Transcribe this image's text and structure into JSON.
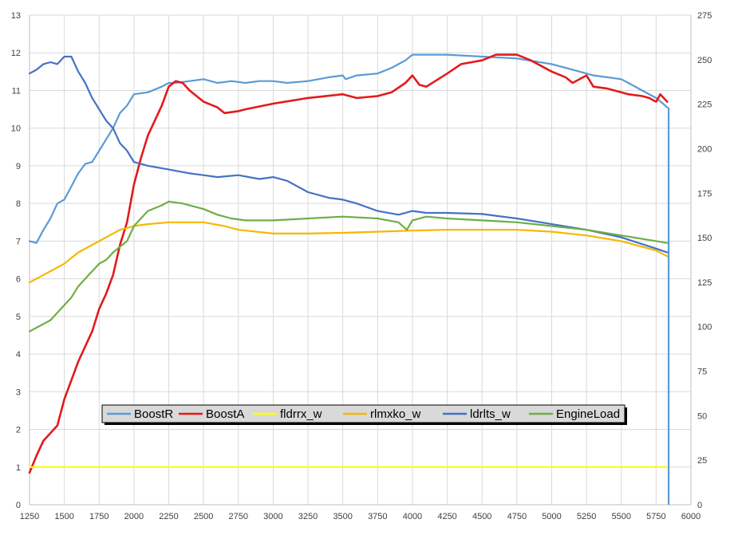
{
  "chart_data": {
    "type": "line",
    "title": "",
    "xlabel": "",
    "ylabel": "",
    "grid": true,
    "legend_placement": "bottom-center (inside plot)",
    "xlim": [
      1250,
      6000
    ],
    "x_ticks": [
      "1250",
      "1500",
      "1750",
      "2000",
      "2250",
      "2500",
      "2750",
      "3000",
      "3250",
      "3500",
      "3750",
      "4000",
      "4250",
      "4500",
      "4750",
      "5000",
      "5250",
      "5500",
      "5750",
      "6000"
    ],
    "ylim_left": [
      0,
      13
    ],
    "y_ticks_left": [
      "0",
      "1",
      "2",
      "3",
      "4",
      "5",
      "6",
      "7",
      "8",
      "9",
      "10",
      "11",
      "12",
      "13"
    ],
    "ylim_right": [
      0,
      275
    ],
    "y_ticks_right": [
      "0",
      "25",
      "50",
      "75",
      "100",
      "125",
      "150",
      "175",
      "200",
      "225",
      "250",
      "275"
    ],
    "series": [
      {
        "name": "BoostR",
        "axis": "left",
        "color": "#5b9bd5",
        "points": [
          [
            1250,
            7.0
          ],
          [
            1300,
            6.95
          ],
          [
            1350,
            7.3
          ],
          [
            1400,
            7.6
          ],
          [
            1450,
            8.0
          ],
          [
            1500,
            8.1
          ],
          [
            1550,
            8.45
          ],
          [
            1600,
            8.8
          ],
          [
            1650,
            9.05
          ],
          [
            1700,
            9.1
          ],
          [
            1750,
            9.4
          ],
          [
            1800,
            9.7
          ],
          [
            1850,
            10.0
          ],
          [
            1900,
            10.4
          ],
          [
            1950,
            10.6
          ],
          [
            2000,
            10.9
          ],
          [
            2100,
            10.95
          ],
          [
            2200,
            11.1
          ],
          [
            2250,
            11.2
          ],
          [
            2300,
            11.2
          ],
          [
            2400,
            11.25
          ],
          [
            2500,
            11.3
          ],
          [
            2600,
            11.2
          ],
          [
            2700,
            11.25
          ],
          [
            2800,
            11.2
          ],
          [
            2900,
            11.25
          ],
          [
            3000,
            11.25
          ],
          [
            3100,
            11.2
          ],
          [
            3250,
            11.25
          ],
          [
            3400,
            11.35
          ],
          [
            3500,
            11.4
          ],
          [
            3520,
            11.3
          ],
          [
            3600,
            11.4
          ],
          [
            3750,
            11.45
          ],
          [
            3850,
            11.6
          ],
          [
            3950,
            11.8
          ],
          [
            4000,
            11.95
          ],
          [
            4250,
            11.95
          ],
          [
            4500,
            11.9
          ],
          [
            4750,
            11.85
          ],
          [
            5000,
            11.7
          ],
          [
            5100,
            11.6
          ],
          [
            5200,
            11.5
          ],
          [
            5300,
            11.4
          ],
          [
            5400,
            11.35
          ],
          [
            5500,
            11.3
          ],
          [
            5550,
            11.2
          ],
          [
            5650,
            11.0
          ],
          [
            5750,
            10.8
          ],
          [
            5800,
            10.65
          ],
          [
            5830,
            10.55
          ]
        ]
      },
      {
        "name": "BoostA",
        "axis": "left",
        "color": "#e31a1c",
        "points": [
          [
            1250,
            0.85
          ],
          [
            1300,
            1.3
          ],
          [
            1350,
            1.7
          ],
          [
            1400,
            1.9
          ],
          [
            1450,
            2.1
          ],
          [
            1500,
            2.8
          ],
          [
            1550,
            3.3
          ],
          [
            1600,
            3.8
          ],
          [
            1650,
            4.2
          ],
          [
            1700,
            4.6
          ],
          [
            1750,
            5.2
          ],
          [
            1800,
            5.6
          ],
          [
            1850,
            6.1
          ],
          [
            1900,
            6.9
          ],
          [
            1950,
            7.5
          ],
          [
            2000,
            8.5
          ],
          [
            2050,
            9.2
          ],
          [
            2100,
            9.8
          ],
          [
            2200,
            10.6
          ],
          [
            2250,
            11.1
          ],
          [
            2300,
            11.25
          ],
          [
            2350,
            11.2
          ],
          [
            2400,
            11.0
          ],
          [
            2500,
            10.7
          ],
          [
            2600,
            10.55
          ],
          [
            2650,
            10.4
          ],
          [
            2750,
            10.45
          ],
          [
            2800,
            10.5
          ],
          [
            3000,
            10.65
          ],
          [
            3250,
            10.8
          ],
          [
            3500,
            10.9
          ],
          [
            3600,
            10.8
          ],
          [
            3750,
            10.85
          ],
          [
            3850,
            10.95
          ],
          [
            3950,
            11.2
          ],
          [
            4000,
            11.4
          ],
          [
            4050,
            11.15
          ],
          [
            4100,
            11.1
          ],
          [
            4250,
            11.45
          ],
          [
            4350,
            11.7
          ],
          [
            4500,
            11.8
          ],
          [
            4600,
            11.95
          ],
          [
            4750,
            11.95
          ],
          [
            4850,
            11.8
          ],
          [
            5000,
            11.5
          ],
          [
            5100,
            11.35
          ],
          [
            5150,
            11.2
          ],
          [
            5250,
            11.4
          ],
          [
            5300,
            11.1
          ],
          [
            5400,
            11.05
          ],
          [
            5500,
            10.95
          ],
          [
            5550,
            10.9
          ],
          [
            5650,
            10.85
          ],
          [
            5700,
            10.8
          ],
          [
            5750,
            10.7
          ],
          [
            5780,
            10.9
          ],
          [
            5830,
            10.7
          ]
        ]
      },
      {
        "name": "fldrrx_w",
        "axis": "left",
        "color": "#ffff00",
        "points": [
          [
            1250,
            1.0
          ],
          [
            5830,
            1.0
          ]
        ]
      },
      {
        "name": "rlmxko_w",
        "axis": "left",
        "color": "#f5b800",
        "points": [
          [
            1250,
            5.9
          ],
          [
            1400,
            6.2
          ],
          [
            1500,
            6.4
          ],
          [
            1600,
            6.7
          ],
          [
            1750,
            7.0
          ],
          [
            1900,
            7.3
          ],
          [
            2000,
            7.4
          ],
          [
            2100,
            7.45
          ],
          [
            2250,
            7.5
          ],
          [
            2500,
            7.5
          ],
          [
            2650,
            7.4
          ],
          [
            2750,
            7.3
          ],
          [
            3000,
            7.2
          ],
          [
            3250,
            7.2
          ],
          [
            3500,
            7.22
          ],
          [
            3750,
            7.25
          ],
          [
            4000,
            7.28
          ],
          [
            4250,
            7.3
          ],
          [
            4500,
            7.3
          ],
          [
            4750,
            7.3
          ],
          [
            5000,
            7.25
          ],
          [
            5250,
            7.15
          ],
          [
            5500,
            7.0
          ],
          [
            5750,
            6.75
          ],
          [
            5830,
            6.6
          ]
        ]
      },
      {
        "name": "ldrlts_w",
        "axis": "left",
        "color": "#4472c4",
        "points": [
          [
            1250,
            11.45
          ],
          [
            1300,
            11.55
          ],
          [
            1350,
            11.7
          ],
          [
            1400,
            11.75
          ],
          [
            1450,
            11.7
          ],
          [
            1500,
            11.9
          ],
          [
            1550,
            11.9
          ],
          [
            1600,
            11.5
          ],
          [
            1650,
            11.2
          ],
          [
            1700,
            10.8
          ],
          [
            1750,
            10.5
          ],
          [
            1800,
            10.2
          ],
          [
            1850,
            10.0
          ],
          [
            1900,
            9.6
          ],
          [
            1950,
            9.4
          ],
          [
            2000,
            9.1
          ],
          [
            2100,
            9.0
          ],
          [
            2250,
            8.9
          ],
          [
            2400,
            8.8
          ],
          [
            2500,
            8.75
          ],
          [
            2600,
            8.7
          ],
          [
            2750,
            8.75
          ],
          [
            2900,
            8.65
          ],
          [
            3000,
            8.7
          ],
          [
            3100,
            8.6
          ],
          [
            3250,
            8.3
          ],
          [
            3400,
            8.15
          ],
          [
            3500,
            8.1
          ],
          [
            3600,
            8.0
          ],
          [
            3750,
            7.8
          ],
          [
            3900,
            7.7
          ],
          [
            4000,
            7.8
          ],
          [
            4100,
            7.75
          ],
          [
            4250,
            7.75
          ],
          [
            4500,
            7.72
          ],
          [
            4750,
            7.6
          ],
          [
            5000,
            7.45
          ],
          [
            5250,
            7.3
          ],
          [
            5500,
            7.1
          ],
          [
            5750,
            6.8
          ],
          [
            5830,
            6.7
          ]
        ]
      },
      {
        "name": "EngineLoad",
        "axis": "left",
        "color": "#70ad47",
        "points": [
          [
            1250,
            4.6
          ],
          [
            1300,
            4.7
          ],
          [
            1350,
            4.8
          ],
          [
            1400,
            4.9
          ],
          [
            1450,
            5.1
          ],
          [
            1500,
            5.3
          ],
          [
            1550,
            5.5
          ],
          [
            1600,
            5.8
          ],
          [
            1650,
            6.0
          ],
          [
            1700,
            6.2
          ],
          [
            1750,
            6.4
          ],
          [
            1800,
            6.5
          ],
          [
            1850,
            6.7
          ],
          [
            1900,
            6.85
          ],
          [
            1950,
            7.0
          ],
          [
            2000,
            7.4
          ],
          [
            2050,
            7.6
          ],
          [
            2100,
            7.8
          ],
          [
            2200,
            7.95
          ],
          [
            2250,
            8.05
          ],
          [
            2350,
            8.0
          ],
          [
            2500,
            7.85
          ],
          [
            2600,
            7.7
          ],
          [
            2700,
            7.6
          ],
          [
            2800,
            7.55
          ],
          [
            3000,
            7.55
          ],
          [
            3250,
            7.6
          ],
          [
            3500,
            7.65
          ],
          [
            3750,
            7.6
          ],
          [
            3900,
            7.5
          ],
          [
            3960,
            7.3
          ],
          [
            4000,
            7.55
          ],
          [
            4100,
            7.65
          ],
          [
            4250,
            7.6
          ],
          [
            4500,
            7.55
          ],
          [
            4750,
            7.5
          ],
          [
            5000,
            7.4
          ],
          [
            5250,
            7.3
          ],
          [
            5500,
            7.15
          ],
          [
            5750,
            7.0
          ],
          [
            5830,
            6.95
          ]
        ]
      }
    ],
    "cursor_x": 5840
  },
  "legend": {
    "items": [
      {
        "label": "BoostR",
        "color": "#5b9bd5"
      },
      {
        "label": "BoostA",
        "color": "#e31a1c"
      },
      {
        "label": "fldrrx_w",
        "color": "#ffff00"
      },
      {
        "label": "rlmxko_w",
        "color": "#f5b800"
      },
      {
        "label": "ldrlts_w",
        "color": "#4472c4"
      },
      {
        "label": "EngineLoad",
        "color": "#70ad47"
      }
    ]
  }
}
